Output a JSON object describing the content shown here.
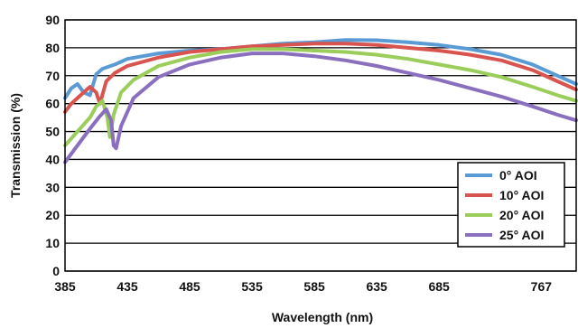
{
  "chart_data": {
    "type": "line",
    "xlabel": "Wavelength (nm)",
    "ylabel": "Transmission (%)",
    "xlim": [
      385,
      795
    ],
    "ylim": [
      0,
      90
    ],
    "x_ticks": [
      385,
      435,
      485,
      535,
      585,
      635,
      685,
      767
    ],
    "y_ticks": [
      0,
      10,
      20,
      30,
      40,
      50,
      60,
      70,
      80,
      90
    ],
    "grid": "horizontal",
    "legend_position": "bottom-right",
    "series": [
      {
        "name": "0° AOI",
        "color": "#5b9bd5",
        "x": [
          385,
          390,
          395,
          400,
          405,
          410,
          415,
          425,
          435,
          460,
          485,
          510,
          535,
          560,
          585,
          610,
          635,
          660,
          685,
          710,
          735,
          760,
          780,
          795
        ],
        "y": [
          62,
          65.5,
          67,
          64,
          63,
          70.5,
          72.5,
          74,
          76,
          78,
          79,
          79.5,
          80.5,
          81.5,
          82,
          82.8,
          82.7,
          82,
          81,
          79.5,
          77.5,
          74,
          70,
          67
        ]
      },
      {
        "name": "10° AOI",
        "color": "#d9534f",
        "x": [
          385,
          390,
          395,
          400,
          405,
          410,
          413,
          418,
          425,
          435,
          460,
          485,
          510,
          535,
          560,
          585,
          610,
          635,
          660,
          685,
          710,
          735,
          760,
          780,
          795
        ],
        "y": [
          57,
          60,
          62,
          64,
          66,
          64,
          60,
          68,
          71,
          73.5,
          76.5,
          78.5,
          79.5,
          80.5,
          81,
          81.5,
          81.5,
          81,
          80,
          79,
          77.5,
          75.5,
          72,
          68,
          65
        ]
      },
      {
        "name": "20° AOI",
        "color": "#9acd5a",
        "x": [
          385,
          395,
          405,
          410,
          415,
          419,
          421,
          424,
          430,
          440,
          460,
          485,
          510,
          535,
          560,
          585,
          610,
          635,
          660,
          685,
          710,
          735,
          760,
          780,
          795
        ],
        "y": [
          45,
          50,
          55,
          59,
          61,
          55,
          48,
          56,
          64,
          68.5,
          73.5,
          76.5,
          78.5,
          79.5,
          79.5,
          79,
          78.5,
          77.5,
          76,
          74,
          72,
          69.5,
          66,
          63,
          61
        ]
      },
      {
        "name": "25° AOI",
        "color": "#8b6fbf",
        "x": [
          385,
          395,
          405,
          412,
          418,
          422,
          424,
          426,
          430,
          440,
          460,
          485,
          510,
          535,
          560,
          585,
          610,
          635,
          660,
          685,
          710,
          735,
          760,
          780,
          795
        ],
        "y": [
          39,
          45,
          51,
          55,
          58,
          54,
          45,
          44,
          52,
          62,
          69.5,
          74,
          76.5,
          78,
          78,
          77,
          75.5,
          73.5,
          71,
          68.5,
          65.5,
          62.5,
          59,
          56,
          54
        ]
      }
    ]
  }
}
